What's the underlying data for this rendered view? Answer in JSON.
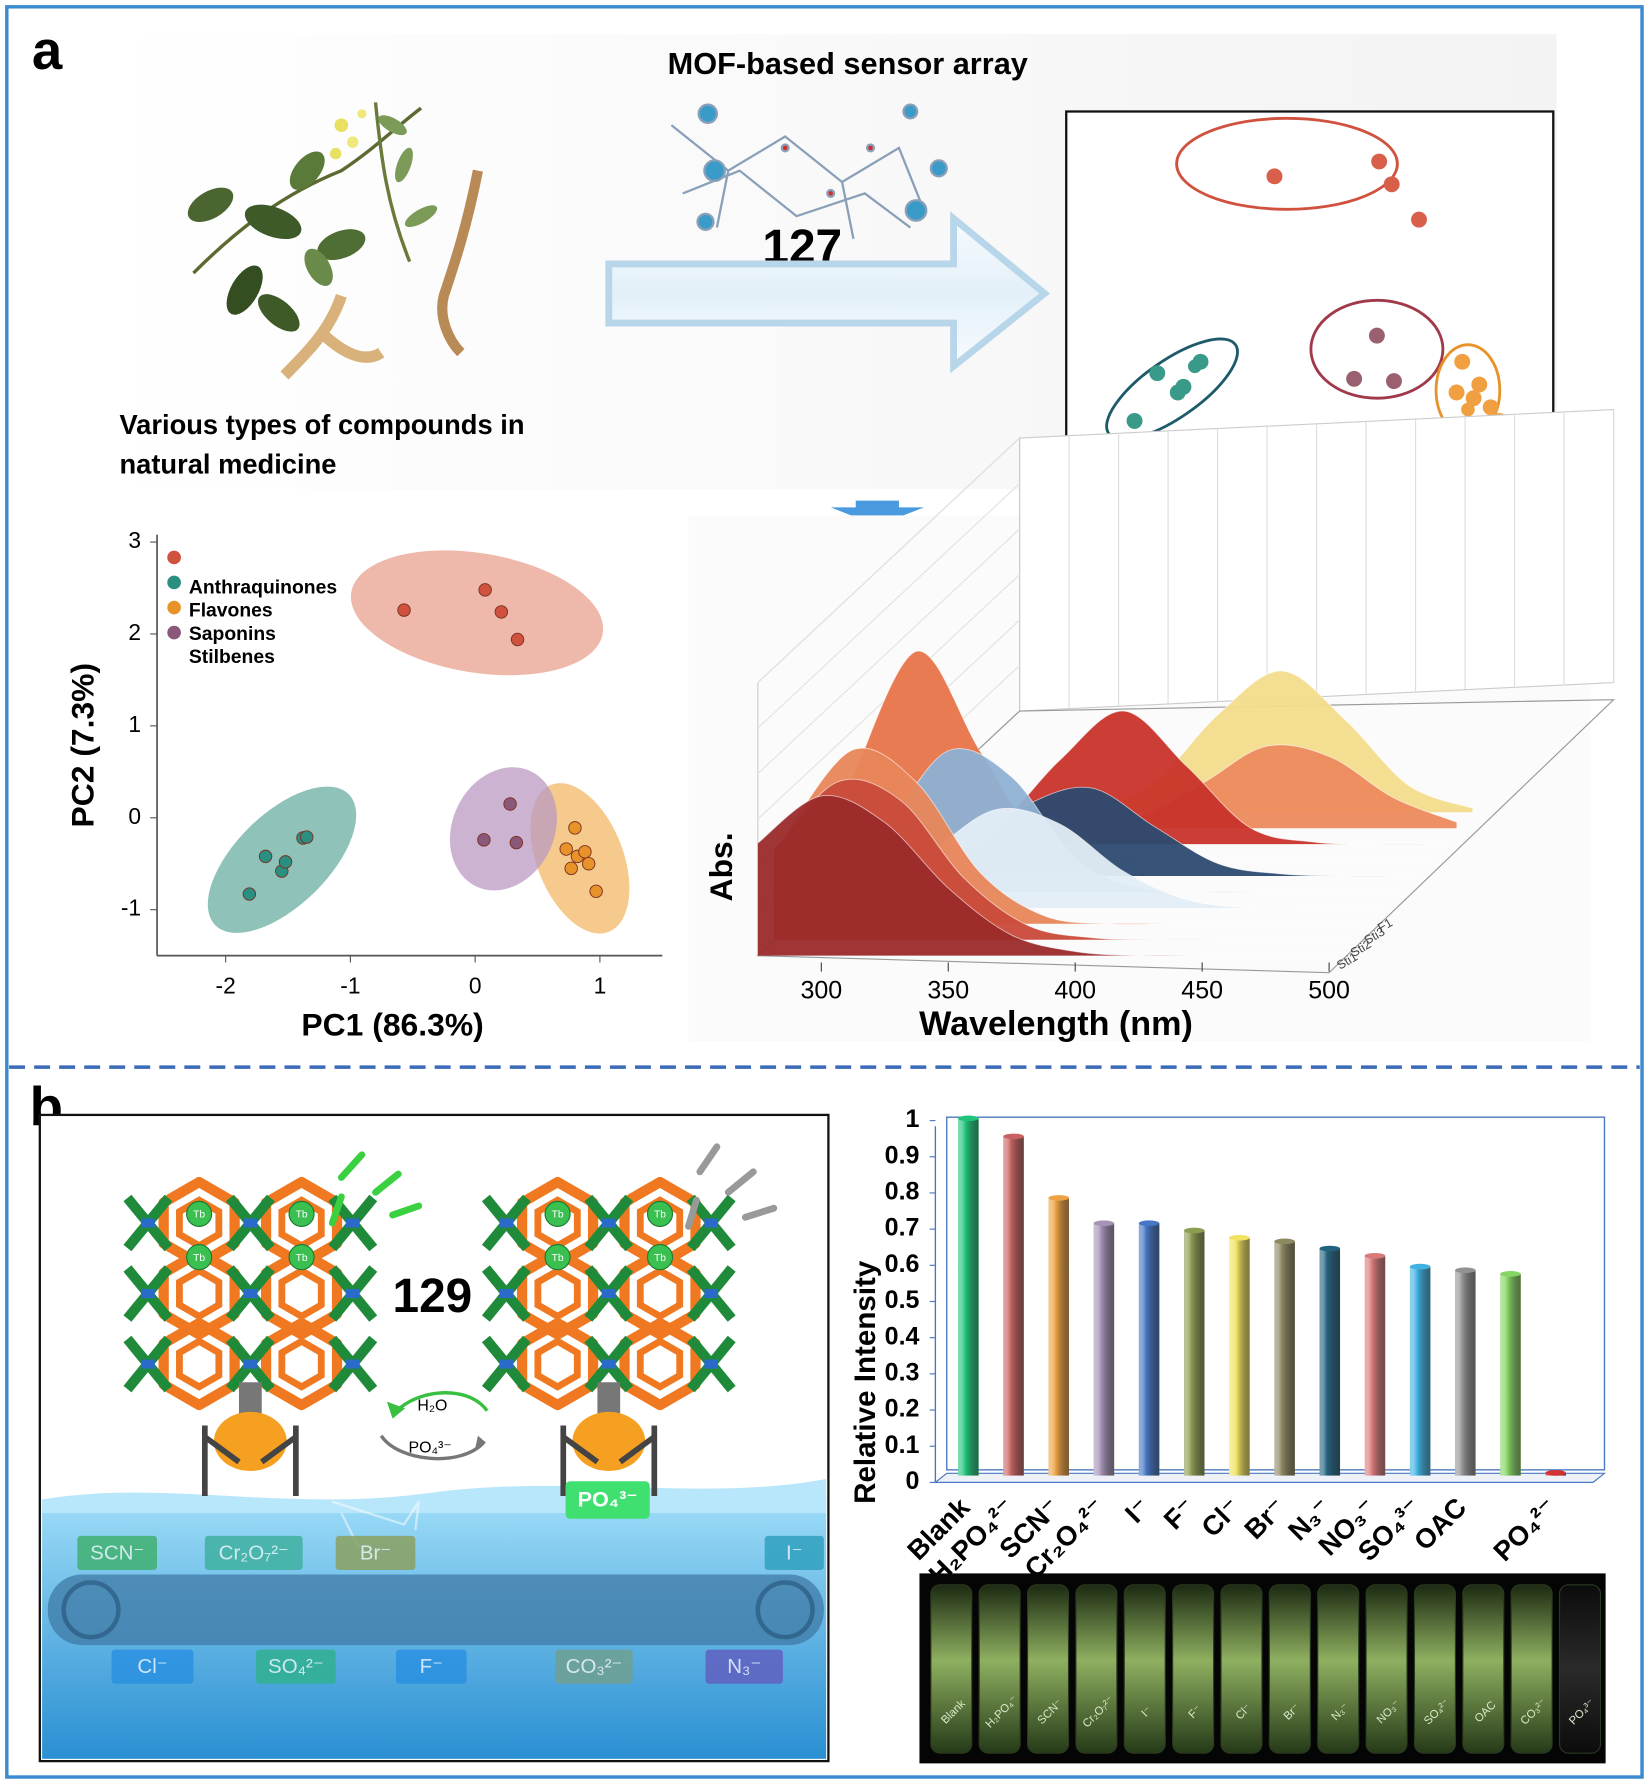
{
  "panel_labels": [
    "a",
    "b"
  ],
  "panel_a": {
    "title": "MOF-based sensor array",
    "compound": "127",
    "caption": [
      "Various types of compounds in",
      "natural medicine"
    ]
  },
  "panel_b": {
    "compound": "129",
    "metal": "Tb",
    "cycle": [
      "H₂O",
      "PO₄³⁻"
    ],
    "bound_anion": "PO₄³⁻",
    "belt_labels": [
      "SCN⁻",
      "Cr₂O₇²⁻",
      "Br⁻",
      "I⁻",
      "Cl⁻",
      "SO₄²⁻",
      "F⁻",
      "CO₃²⁻",
      "N₃⁻"
    ],
    "vial_labels": [
      "Blank",
      "H₂PO₄⁻",
      "SCN⁻",
      "Cr₂O₇²⁻",
      "I⁻",
      "F⁻",
      "Cl⁻",
      "Br⁻",
      "N₃⁻",
      "NO₃⁻",
      "SO₄²⁻",
      "OAC",
      "CO₃²⁻",
      "PO₄³⁻"
    ]
  },
  "chart_data": [
    {
      "type": "scatter",
      "xlabel": "PC1 (86.3%)",
      "ylabel": "PC2 (7.3%)",
      "xlim": [
        -2.55,
        1.5
      ],
      "ylim": [
        -1.5,
        3.08
      ],
      "xticks": [
        -2,
        -1,
        0,
        1
      ],
      "yticks": [
        -1,
        0,
        1,
        2,
        3
      ],
      "series": [
        {
          "name": "Anthraquinones",
          "color": "#d0523e",
          "ellipse_color": "#e8a08f",
          "x": [
            -0.57,
            0.08,
            0.21,
            0.34
          ],
          "values": [
            2.26,
            2.48,
            2.24,
            1.94
          ]
        },
        {
          "name": "Flavones",
          "color": "#2a8f80",
          "ellipse_color": "#6aaea2",
          "x": [
            -1.81,
            -1.68,
            -1.55,
            -1.52,
            -1.38,
            -1.35
          ],
          "values": [
            -0.83,
            -0.42,
            -0.58,
            -0.48,
            -0.22,
            -0.21
          ]
        },
        {
          "name": "Saponins",
          "color": "#e8922a",
          "ellipse_color": "#f2b866",
          "x": [
            0.8,
            0.73,
            0.82,
            0.88,
            0.91,
            0.97,
            0.77
          ],
          "values": [
            -0.11,
            -0.34,
            -0.42,
            -0.37,
            -0.5,
            -0.8,
            -0.55
          ]
        },
        {
          "name": "Stilbenes",
          "color": "#8a5878",
          "ellipse_color": "#b99ac2",
          "x": [
            0.07,
            0.28,
            0.33
          ],
          "values": [
            -0.24,
            0.15,
            -0.27
          ]
        }
      ]
    },
    {
      "type": "spectra3d",
      "xlabel": "Wavelength (nm)",
      "ylabel": "Abs.",
      "xlim": [
        275,
        500
      ],
      "xticks": [
        300,
        350,
        400,
        450,
        500
      ],
      "depth_labels": [
        "Sti1",
        "Sti2",
        "Sti3",
        "F1"
      ],
      "x": [
        275,
        300,
        325,
        350,
        375,
        400,
        425,
        450,
        475,
        500
      ],
      "series": [
        {
          "color": "#9b2a2a",
          "values": [
            0.55,
            0.78,
            0.65,
            0.33,
            0.1,
            0.02,
            0,
            0,
            0,
            0
          ]
        },
        {
          "color": "#c94a3a",
          "values": [
            0.44,
            0.77,
            0.68,
            0.3,
            0.07,
            0.01,
            0,
            0,
            0,
            0
          ]
        },
        {
          "color": "#e8865a",
          "values": [
            0.47,
            0.85,
            0.69,
            0.25,
            0.04,
            0,
            0,
            0,
            0,
            0
          ]
        },
        {
          "color": "#e2edf6",
          "values": [
            0.01,
            0.08,
            0.28,
            0.48,
            0.41,
            0.18,
            0.04,
            0,
            0,
            0
          ]
        },
        {
          "color": "#8eb1d3",
          "values": [
            0.05,
            0.32,
            0.69,
            0.56,
            0.16,
            0.02,
            0,
            0,
            0,
            0
          ]
        },
        {
          "color": "#2c4a70",
          "values": [
            0,
            0.02,
            0.13,
            0.35,
            0.43,
            0.24,
            0.06,
            0.01,
            0,
            0
          ]
        },
        {
          "color": "#e8744a",
          "values": [
            0.41,
            1.02,
            0.53,
            0.06,
            0,
            0,
            0,
            0,
            0,
            0
          ]
        },
        {
          "color": "#c8332a",
          "values": [
            0,
            0.01,
            0.09,
            0.41,
            0.65,
            0.38,
            0.08,
            0.01,
            0,
            0
          ]
        },
        {
          "color": "#ec8a5e",
          "values": [
            0,
            0,
            0,
            0.01,
            0.06,
            0.22,
            0.4,
            0.35,
            0.15,
            0.03
          ]
        },
        {
          "color": "#f3dc8c",
          "values": [
            0,
            0,
            0,
            0.02,
            0.15,
            0.48,
            0.69,
            0.45,
            0.13,
            0.02
          ]
        }
      ]
    },
    {
      "type": "bar",
      "ylabel": "Relative Intensity",
      "categories": [
        "Blank",
        "H₂PO₄²⁻",
        "SCN⁻",
        "Cr₂O₄²⁻",
        "I⁻",
        "F⁻",
        "Cl⁻",
        "Br⁻",
        "N₃⁻",
        "NO₃⁻",
        "SO₄³⁻",
        "OAC",
        null,
        "PO₄²⁻"
      ],
      "values": [
        1.0,
        0.95,
        0.78,
        0.71,
        0.71,
        0.69,
        0.67,
        0.66,
        0.64,
        0.62,
        0.59,
        0.58,
        0.57,
        0.02
      ],
      "colors": [
        "#1fc47a",
        "#c86262",
        "#eda243",
        "#a593b6",
        "#4575c4",
        "#8c9c52",
        "#f1e261",
        "#8e8862",
        "#23637f",
        "#d97a7a",
        "#3fb2e2",
        "#929292",
        "#86d463",
        "#d23232"
      ],
      "ylim": [
        0,
        1
      ],
      "yticks": [
        0,
        0.1,
        0.2,
        0.3,
        0.4,
        0.5,
        0.6,
        0.7,
        0.8,
        0.9,
        1
      ]
    }
  ]
}
